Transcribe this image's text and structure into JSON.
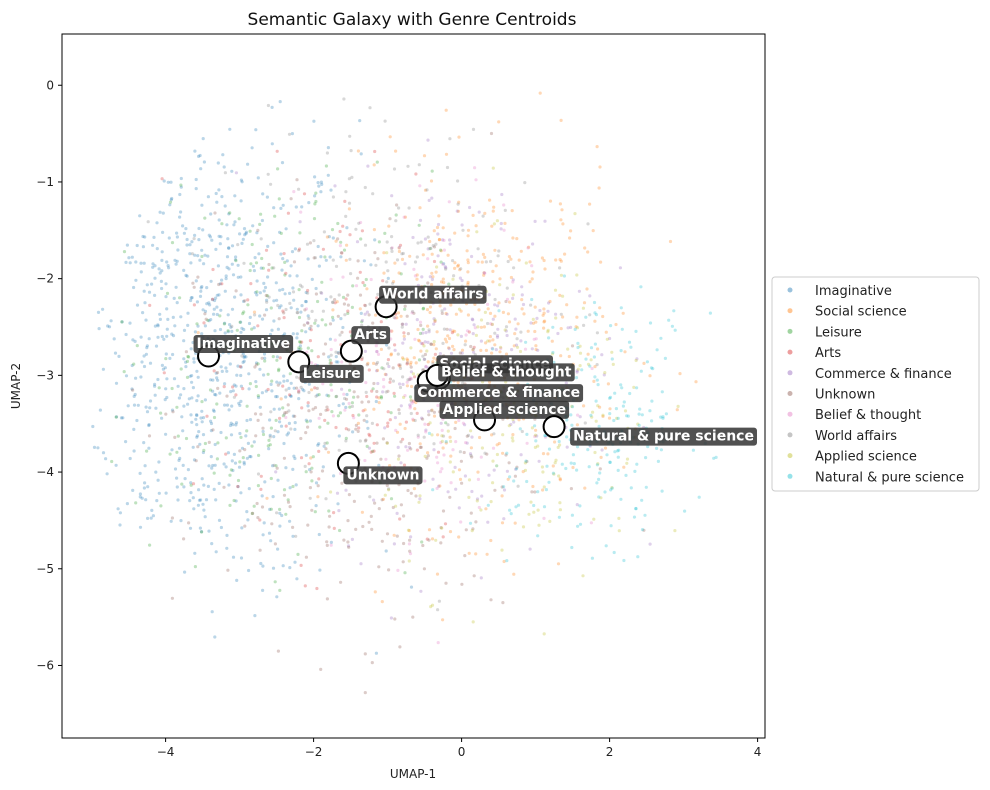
{
  "chart_data": {
    "type": "scatter",
    "title": "Semantic Galaxy with Genre Centroids",
    "xlabel": "UMAP-1",
    "ylabel": "UMAP-2",
    "xlim": [
      -5.4,
      4.1
    ],
    "ylim": [
      -6.75,
      0.53
    ],
    "x_ticks": [
      -4,
      -2,
      0,
      2,
      4
    ],
    "x_tick_labels": [
      "−4",
      "−2",
      "0",
      "2",
      "4"
    ],
    "y_ticks": [
      0,
      -1,
      -2,
      -3,
      -4,
      -5,
      -6
    ],
    "y_tick_labels": [
      "0",
      "−1",
      "−2",
      "−3",
      "−4",
      "−5",
      "−6"
    ],
    "grid": false,
    "legend_position": "right",
    "series": [
      {
        "name": "Imaginative",
        "color": "#1f77b4",
        "centroid": [
          -3.42,
          -2.8
        ]
      },
      {
        "name": "Social science",
        "color": "#ff7f0e",
        "centroid": [
          -0.3,
          -3.03
        ]
      },
      {
        "name": "Leisure",
        "color": "#2ca02c",
        "centroid": [
          -2.2,
          -2.86
        ]
      },
      {
        "name": "Arts",
        "color": "#d62728",
        "centroid": [
          -1.49,
          -2.75
        ]
      },
      {
        "name": "Commerce & finance",
        "color": "#9467bd",
        "centroid": [
          -0.45,
          -3.06
        ]
      },
      {
        "name": "Unknown",
        "color": "#8c564b",
        "centroid": [
          -1.53,
          -3.91
        ]
      },
      {
        "name": "Belief & thought",
        "color": "#e377c2",
        "centroid": [
          -0.33,
          -3.0
        ]
      },
      {
        "name": "World affairs",
        "color": "#7f7f7f",
        "centroid": [
          -1.02,
          -2.29
        ]
      },
      {
        "name": "Applied science",
        "color": "#bcbd22",
        "centroid": [
          0.31,
          -3.46
        ]
      },
      {
        "name": "Natural & pure science",
        "color": "#17becf",
        "centroid": [
          1.25,
          -3.53
        ]
      }
    ]
  }
}
